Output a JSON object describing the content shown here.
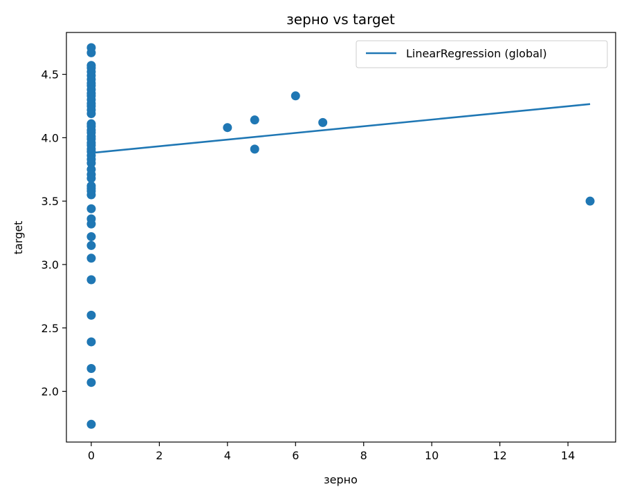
{
  "chart_data": {
    "type": "scatter",
    "title": "зерно vs target",
    "xlabel": "зерно",
    "ylabel": "target",
    "xlim": [
      -0.73,
      15.4
    ],
    "ylim": [
      1.6,
      4.83
    ],
    "xticks": [
      0,
      2,
      4,
      6,
      8,
      10,
      12,
      14
    ],
    "yticks": [
      2.0,
      2.5,
      3.0,
      3.5,
      4.0,
      4.5
    ],
    "xtick_labels": [
      "0",
      "2",
      "4",
      "6",
      "8",
      "10",
      "12",
      "14"
    ],
    "ytick_labels": [
      "2.0",
      "2.5",
      "3.0",
      "3.5",
      "4.0",
      "4.5"
    ],
    "grid": false,
    "legend": {
      "position": "upper-right",
      "entries": [
        "LinearRegression (global)"
      ]
    },
    "series": [
      {
        "kind": "scatter",
        "color": "#1f77b4",
        "points": [
          [
            0,
            4.71
          ],
          [
            0,
            4.67
          ],
          [
            0,
            4.57
          ],
          [
            0,
            4.55
          ],
          [
            0,
            4.52
          ],
          [
            0,
            4.49
          ],
          [
            0,
            4.46
          ],
          [
            0,
            4.43
          ],
          [
            0,
            4.41
          ],
          [
            0,
            4.38
          ],
          [
            0,
            4.35
          ],
          [
            0,
            4.33
          ],
          [
            0,
            4.3
          ],
          [
            0,
            4.27
          ],
          [
            0,
            4.25
          ],
          [
            0,
            4.22
          ],
          [
            0,
            4.19
          ],
          [
            0,
            4.11
          ],
          [
            0,
            4.09
          ],
          [
            0,
            4.06
          ],
          [
            0,
            4.04
          ],
          [
            0,
            4.01
          ],
          [
            0,
            3.99
          ],
          [
            0,
            3.96
          ],
          [
            0,
            3.94
          ],
          [
            0,
            3.91
          ],
          [
            0,
            3.89
          ],
          [
            0,
            3.86
          ],
          [
            0,
            3.83
          ],
          [
            0,
            3.8
          ],
          [
            0,
            3.75
          ],
          [
            0,
            3.71
          ],
          [
            0,
            3.68
          ],
          [
            0,
            3.62
          ],
          [
            0,
            3.6
          ],
          [
            0,
            3.58
          ],
          [
            0,
            3.55
          ],
          [
            0,
            3.44
          ],
          [
            0,
            3.36
          ],
          [
            0,
            3.32
          ],
          [
            0,
            3.22
          ],
          [
            0,
            3.15
          ],
          [
            0,
            3.05
          ],
          [
            0,
            2.88
          ],
          [
            0,
            2.6
          ],
          [
            0,
            2.39
          ],
          [
            0,
            2.18
          ],
          [
            0,
            2.07
          ],
          [
            0,
            1.74
          ],
          [
            4.0,
            4.08
          ],
          [
            4.8,
            4.14
          ],
          [
            4.8,
            3.91
          ],
          [
            6.0,
            4.33
          ],
          [
            6.8,
            4.12
          ],
          [
            14.65,
            3.5
          ]
        ]
      },
      {
        "kind": "line",
        "name": "LinearRegression (global)",
        "color": "#1f77b4",
        "points": [
          [
            0,
            3.88
          ],
          [
            14.65,
            4.265
          ]
        ]
      }
    ]
  }
}
